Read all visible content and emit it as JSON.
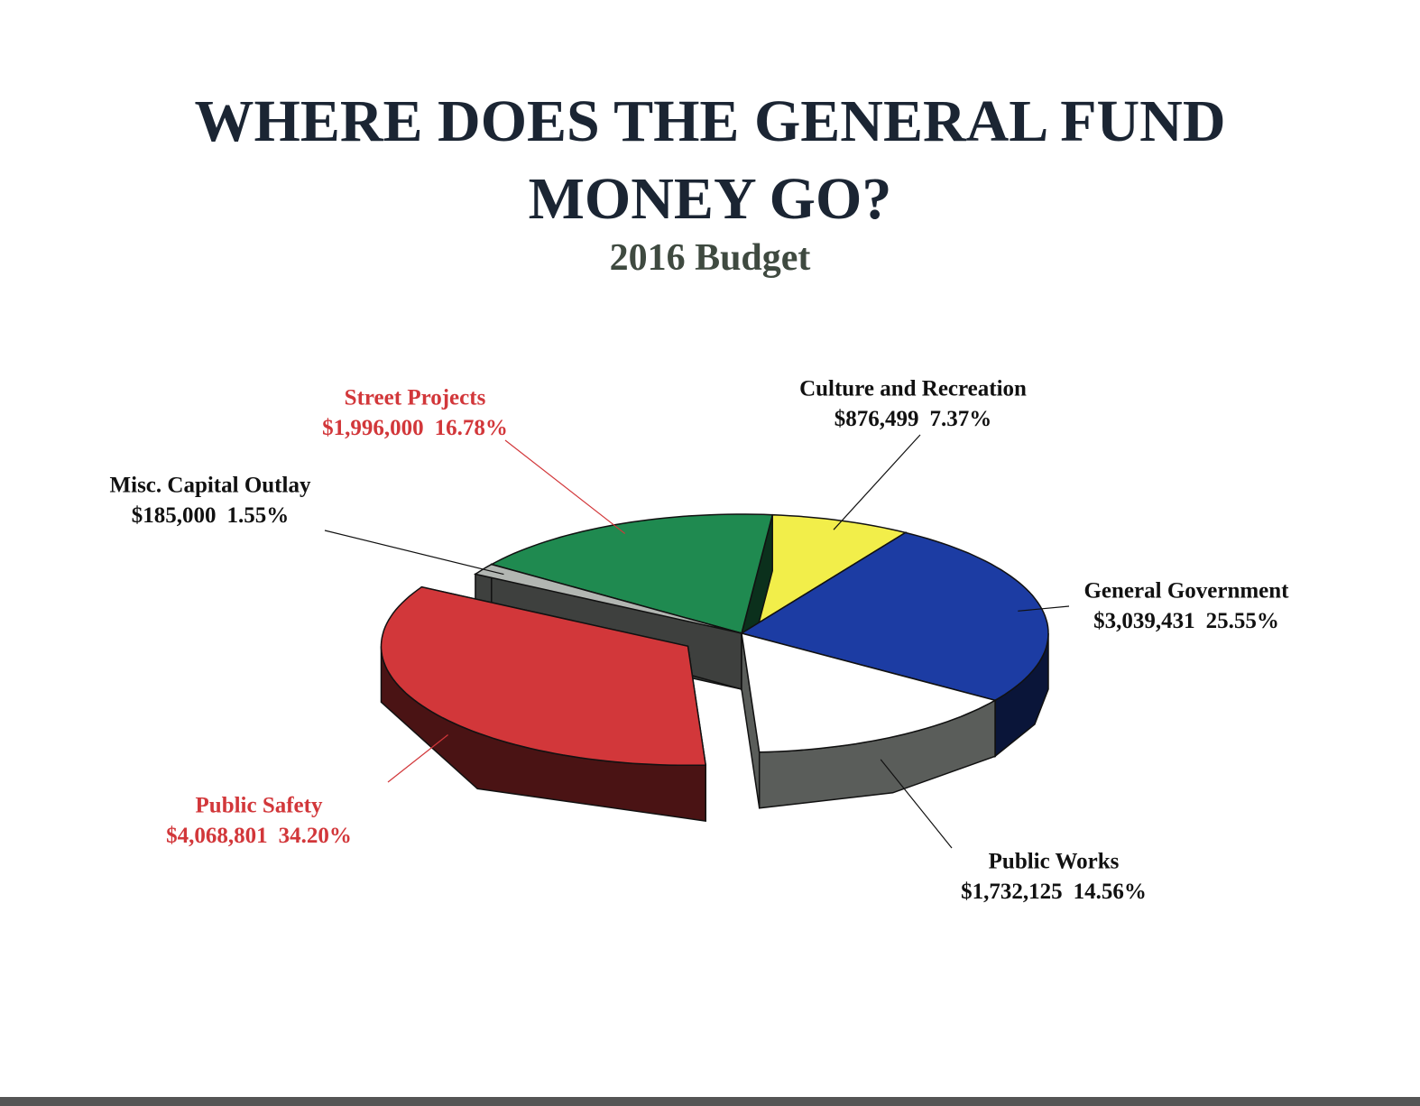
{
  "chart_data": {
    "type": "pie3d",
    "title": "WHERE DOES THE GENERAL FUND MONEY GO?",
    "subtitle": "2016 Budget",
    "categories": [
      "Culture and Recreation",
      "General Government",
      "Public Works",
      "Public Safety",
      "Misc. Capital Outlay",
      "Street Projects"
    ],
    "values": [
      876499,
      3039431,
      1732125,
      4068801,
      185000,
      1996000
    ],
    "value_labels": [
      "$876,499",
      "$3,039,431",
      "$1,732,125",
      "$4,068,801",
      "$185,000",
      "$1,996,000"
    ],
    "percentages": [
      7.37,
      25.55,
      14.56,
      34.2,
      1.55,
      16.78
    ],
    "percentage_labels": [
      "7.37%",
      "25.55%",
      "14.56%",
      "34.20%",
      "1.55%",
      "16.78%"
    ],
    "colors": [
      "#f2ee4a",
      "#1c3ca3",
      "#ffffff",
      "#d2373a",
      "#b2b6b2",
      "#1f8a50"
    ],
    "label_colors": [
      "#111111",
      "#111111",
      "#111111",
      "#d2373a",
      "#111111",
      "#d2373a"
    ],
    "exploded": [
      "Public Safety"
    ]
  }
}
